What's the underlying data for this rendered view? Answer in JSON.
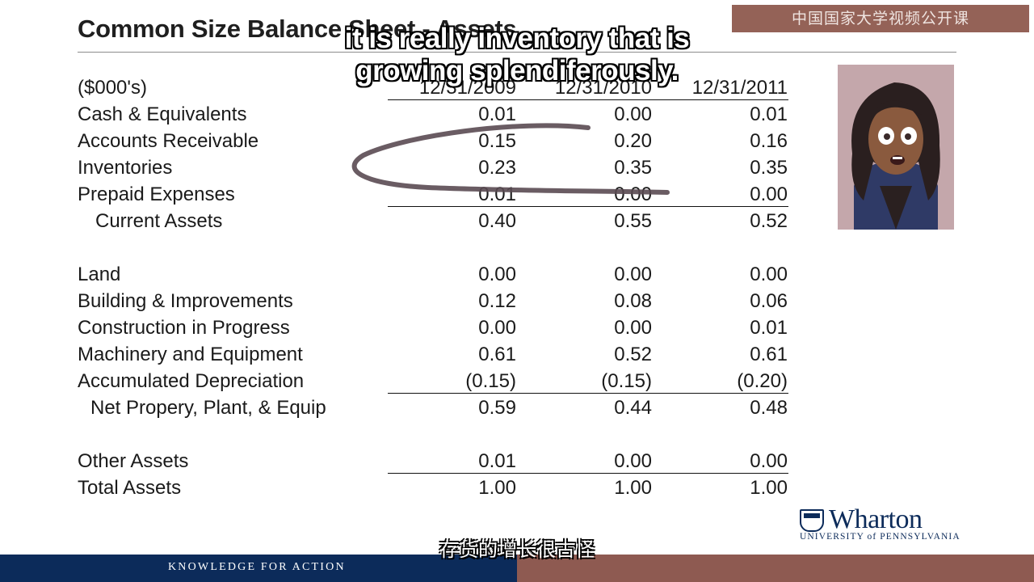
{
  "slide": {
    "title": "Common Size Balance Sheet - Assets",
    "units_label": "($000's)",
    "years": [
      "12/31/2009",
      "12/31/2010",
      "12/31/2011"
    ]
  },
  "rows": [
    {
      "label": "Cash & Equivalents",
      "values": [
        "0.01",
        "0.00",
        "0.01"
      ]
    },
    {
      "label": "Accounts Receivable",
      "values": [
        "0.15",
        "0.20",
        "0.16"
      ]
    },
    {
      "label": "Inventories",
      "values": [
        "0.23",
        "0.35",
        "0.35"
      ]
    },
    {
      "label": "Prepaid Expenses",
      "values": [
        "0.01",
        "0.00",
        "0.00"
      ]
    },
    {
      "label": "Current Assets",
      "values": [
        "0.40",
        "0.55",
        "0.52"
      ]
    },
    {
      "label": "Land",
      "values": [
        "0.00",
        "0.00",
        "0.00"
      ]
    },
    {
      "label": "Building & Improvements",
      "values": [
        "0.12",
        "0.08",
        "0.06"
      ]
    },
    {
      "label": "Construction in Progress",
      "values": [
        "0.00",
        "0.00",
        "0.01"
      ]
    },
    {
      "label": "Machinery and Equipment",
      "values": [
        "0.61",
        "0.52",
        "0.61"
      ]
    },
    {
      "label": "Accumulated Depreciation",
      "values": [
        "(0.15)",
        "(0.15)",
        "(0.20)"
      ]
    },
    {
      "label": "Net Propery, Plant, & Equip",
      "values": [
        "0.59",
        "0.44",
        "0.48"
      ]
    },
    {
      "label": "Other Assets",
      "values": [
        "0.01",
        "0.00",
        "0.00"
      ]
    },
    {
      "label": "Total Assets",
      "values": [
        "1.00",
        "1.00",
        "1.00"
      ]
    }
  ],
  "subtitles": {
    "english": "it is really inventory that is growing splendiferously.",
    "chinese": "存货的增长很古怪"
  },
  "watermark": "中国国家大学视频公开课",
  "branding": {
    "logo_word": "Wharton",
    "logo_subtitle": "UNIVERSITY of PENNSYLVANIA",
    "footer_tagline": "KNOWLEDGE FOR ACTION",
    "colors": {
      "navy": "#0c2b5a",
      "maroon": "#8e5a51"
    }
  },
  "annotation": {
    "stroke_color": "#5a4a52",
    "encircles": "Inventories"
  }
}
